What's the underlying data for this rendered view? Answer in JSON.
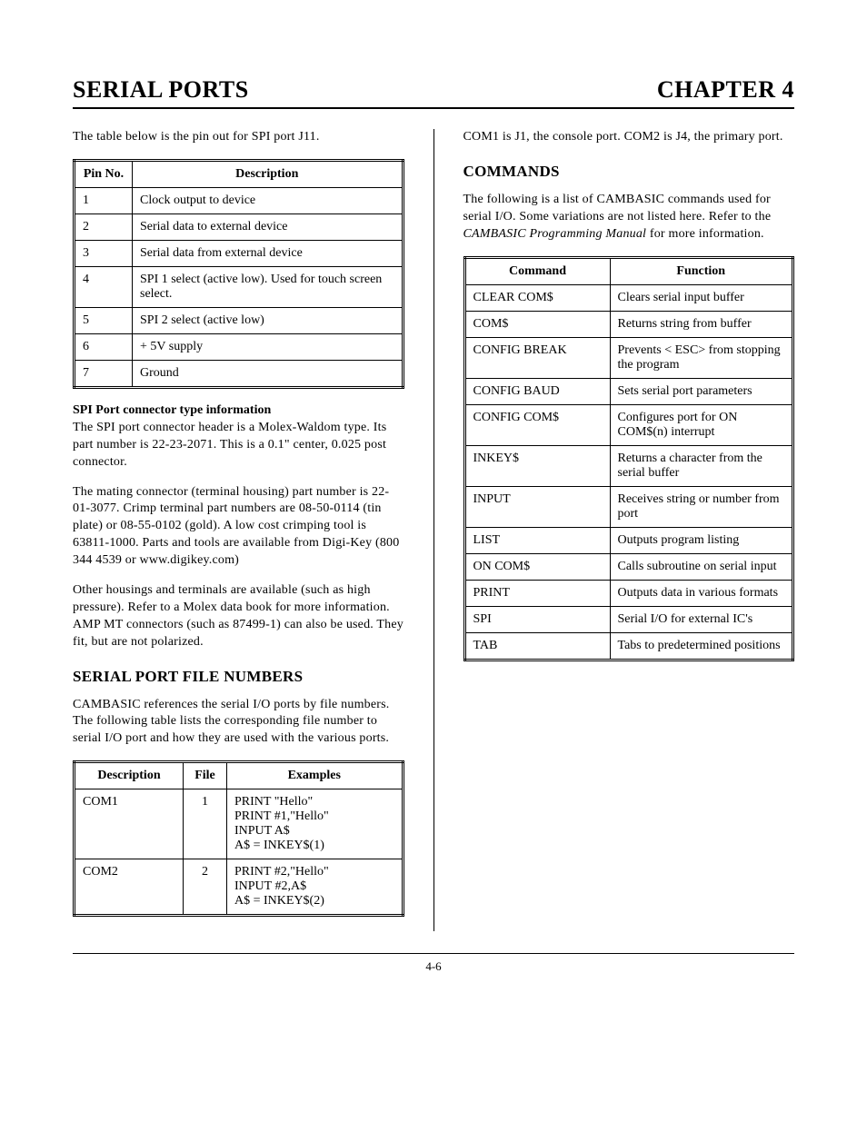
{
  "header": {
    "left": "SERIAL PORTS",
    "right": "CHAPTER 4"
  },
  "left_col": {
    "intro": "The table below is the pin out for SPI port J11.",
    "pin_table": {
      "headers": [
        "Pin No.",
        "Description"
      ],
      "rows": [
        [
          "1",
          "Clock output to device"
        ],
        [
          "2",
          "Serial data to external device"
        ],
        [
          "3",
          "Serial data from external device"
        ],
        [
          "4",
          "SPI 1 select (active low).  Used for touch screen select."
        ],
        [
          "5",
          "SPI 2 select (active low)"
        ],
        [
          "6",
          "+ 5V supply"
        ],
        [
          "7",
          "Ground"
        ]
      ]
    },
    "spi_head": "SPI Port connector type information",
    "spi_p1": "The SPI port connector header is a Molex-Waldom type.  Its part number is 22-23-2071.  This is a 0.1\" center, 0.025 post connector.",
    "spi_p2": "The mating connector (terminal housing) part number is 22-01-3077.  Crimp terminal part numbers are 08-50-0114 (tin plate) or 08-55-0102 (gold).  A low cost crimping tool is 63811-1000.  Parts and tools are available from Digi-Key (800 344 4539 or www.digikey.com)",
    "spi_p3": "Other housings and terminals are available (such as high pressure).  Refer to a Molex data book for more information.  AMP MT connectors (such as 87499-1) can also be used.  They fit, but are not polarized.",
    "file_num_head": "SERIAL PORT FILE NUMBERS",
    "file_num_p": "CAMBASIC references the serial I/O ports by file numbers.  The following table lists the corresponding file number to serial I/O port and how they are used with the various ports.",
    "file_table": {
      "headers": [
        "Description",
        "File",
        "Examples"
      ],
      "rows": [
        [
          "COM1",
          "1",
          "PRINT \"Hello\"\nPRINT #1,\"Hello\"\nINPUT A$\nA$ =  INKEY$(1)"
        ],
        [
          "COM2",
          "2",
          "PRINT #2,\"Hello\"\nINPUT #2,A$\nA$ =  INKEY$(2)"
        ]
      ]
    }
  },
  "right_col": {
    "com_p": "COM1 is J1, the console port.  COM2 is J4, the primary port.",
    "commands_head": "COMMANDS",
    "commands_p_pre": "The following is a list of CAMBASIC commands used for serial I/O. Some variations are not listed here.  Refer to the ",
    "commands_p_ital": "CAMBASIC Programming Manual",
    "commands_p_post": " for more information.",
    "cmd_table": {
      "headers": [
        "Command",
        "Function"
      ],
      "rows": [
        [
          "CLEAR COM$",
          "Clears serial input buffer"
        ],
        [
          "COM$",
          "Returns string from buffer"
        ],
        [
          "CONFIG BREAK",
          "Prevents < ESC>  from stopping the program"
        ],
        [
          "CONFIG BAUD",
          "Sets serial port parameters"
        ],
        [
          "CONFIG COM$",
          "Configures port for ON COM$(n) interrupt"
        ],
        [
          "INKEY$",
          "Returns a character from the serial buffer"
        ],
        [
          "INPUT",
          "Receives string or number from port"
        ],
        [
          "LIST",
          "Outputs program listing"
        ],
        [
          "ON COM$",
          "Calls subroutine on serial input"
        ],
        [
          "PRINT",
          "Outputs data in various formats"
        ],
        [
          "SPI",
          "Serial I/O for external IC's"
        ],
        [
          "TAB",
          "Tabs to predetermined positions"
        ]
      ]
    }
  },
  "footer": "4-6"
}
